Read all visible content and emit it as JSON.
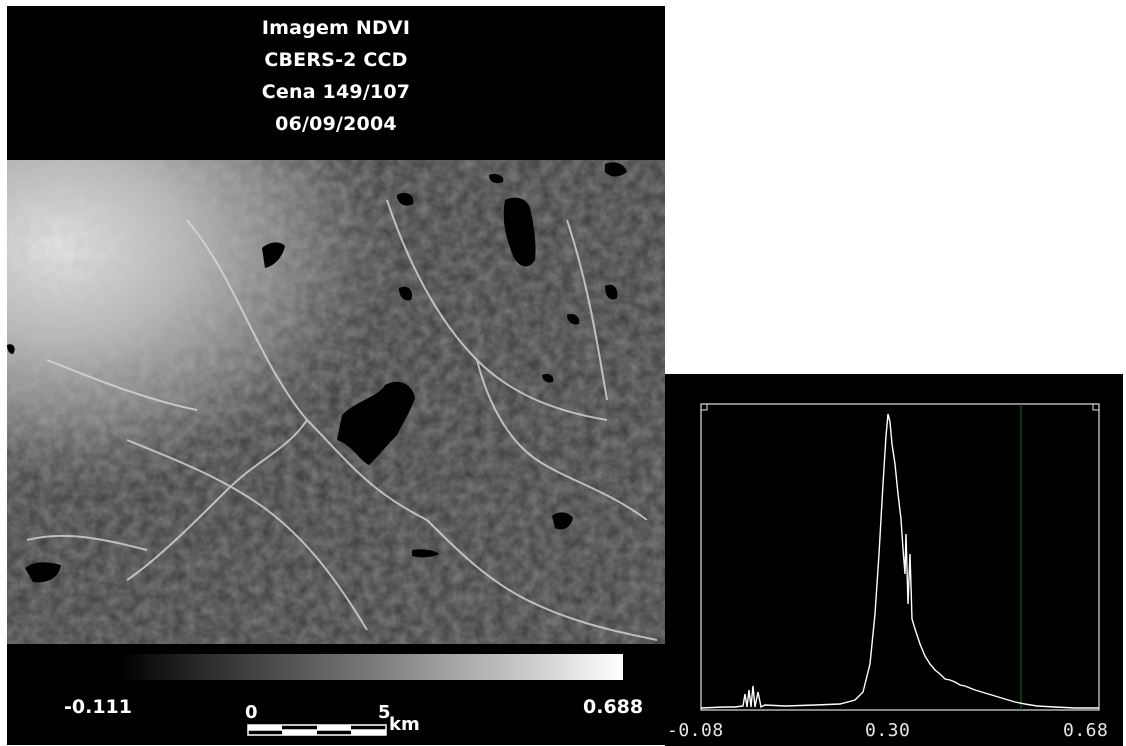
{
  "title": {
    "lines": [
      "Imagem NDVI",
      "CBERS-2 CCD",
      "Cena 149/107",
      "06/09/2004"
    ]
  },
  "legend": {
    "min_label": "-0.111",
    "max_label": "0.688",
    "gradient_colors": [
      "#000000",
      "#ffffff"
    ]
  },
  "scalebar": {
    "start_label": "0",
    "end_label": "5",
    "unit": "km"
  },
  "histogram": {
    "tick_labels": [
      "-0.08",
      "0.30",
      "0.68"
    ],
    "curve_color": "#ffffff",
    "marker_color": "#1e6b1e",
    "frame_color": "#e0e0e0"
  }
}
